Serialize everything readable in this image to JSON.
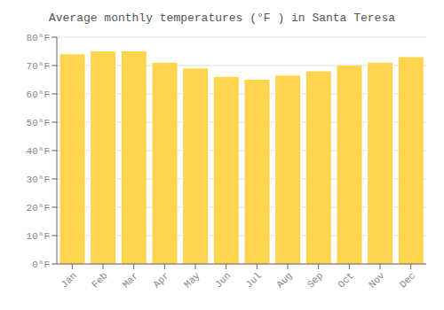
{
  "chart_data": {
    "type": "bar",
    "title": "Average monthly temperatures (°F ) in Santa Teresa",
    "categories": [
      "Jan",
      "Feb",
      "Mar",
      "Apr",
      "May",
      "Jun",
      "Jul",
      "Aug",
      "Sep",
      "Oct",
      "Nov",
      "Dec"
    ],
    "values": [
      74,
      75,
      75,
      71,
      69,
      66,
      65,
      66.5,
      68,
      70,
      71,
      73
    ],
    "color": "#FFD54F",
    "ylim": [
      0,
      80
    ],
    "yticks": [
      {
        "value": 0,
        "label": "0°F"
      },
      {
        "value": 10,
        "label": "10°F"
      },
      {
        "value": 20,
        "label": "20°F"
      },
      {
        "value": 30,
        "label": "30°F"
      },
      {
        "value": 40,
        "label": "40°F"
      },
      {
        "value": 50,
        "label": "50°F"
      },
      {
        "value": 60,
        "label": "60°F"
      },
      {
        "value": 70,
        "label": "70°F"
      },
      {
        "value": 80,
        "label": "80°F"
      }
    ],
    "grid": true
  }
}
